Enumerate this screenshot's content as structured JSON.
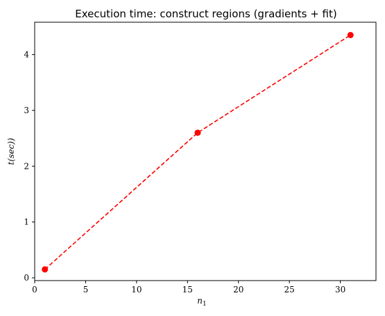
{
  "chart_data": {
    "type": "line",
    "title": "Execution time: construct regions (gradients + fit)",
    "xlabel": "n",
    "xlabel_subscript": "1",
    "ylabel": "t(sec))",
    "xlim": [
      0,
      33.5
    ],
    "ylim": [
      -0.05,
      4.58
    ],
    "xticks": [
      0,
      5,
      10,
      15,
      20,
      25,
      30
    ],
    "yticks": [
      0,
      1,
      2,
      3,
      4
    ],
    "grid": false,
    "legend": "none",
    "series": [
      {
        "color": "#ff0000",
        "linestyle": "dashed",
        "marker": "circle",
        "x": [
          1,
          16,
          31
        ],
        "y": [
          0.15,
          2.6,
          4.35
        ]
      }
    ]
  }
}
